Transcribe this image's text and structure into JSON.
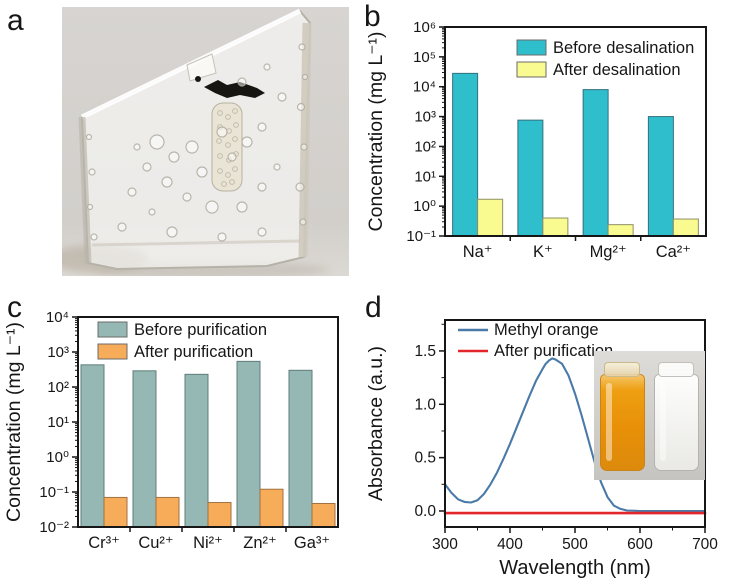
{
  "panels": {
    "a": {
      "letter": "a",
      "content": "photograph of a transparent purified ice crystal block on a gray background"
    },
    "b": {
      "letter": "b"
    },
    "c": {
      "letter": "c"
    },
    "d": {
      "letter": "d",
      "inset": "vials before (methyl orange, orange liquid) and after purification (clear liquid)"
    }
  },
  "chart_data": [
    {
      "id": "b",
      "type": "bar",
      "yscale": "log",
      "ylabel": "Concentration (mg L⁻¹)",
      "ylim": [
        0.1,
        1000000
      ],
      "ytick_values": [
        0.1,
        1,
        10,
        100,
        1000,
        10000,
        100000,
        1000000
      ],
      "ytick_labels": [
        "10⁻¹",
        "10⁰",
        "10¹",
        "10²",
        "10³",
        "10⁴",
        "10⁵",
        "10⁶"
      ],
      "categories": [
        "Na⁺",
        "K⁺",
        "Mg²⁺",
        "Ca²⁺"
      ],
      "series": [
        {
          "name": "Before desalination",
          "color": "#2fbecb",
          "edge": "#35707e",
          "values": [
            28000,
            760,
            8000,
            1000
          ]
        },
        {
          "name": "After desalination",
          "color": "#f9fa90",
          "edge": "#8f9165",
          "values": [
            1.7,
            0.4,
            0.24,
            0.37
          ]
        }
      ],
      "legend_position": "top-right",
      "grid": false
    },
    {
      "id": "c",
      "type": "bar",
      "yscale": "log",
      "ylabel": "Concentration (mg L⁻¹)",
      "ylim": [
        0.01,
        10000
      ],
      "ytick_values": [
        0.01,
        0.1,
        1,
        10,
        100,
        1000,
        10000
      ],
      "ytick_labels": [
        "10⁻²",
        "10⁻¹",
        "10⁰",
        "10¹",
        "10²",
        "10³",
        "10⁴"
      ],
      "categories": [
        "Cr³⁺",
        "Cu²⁺",
        "Ni²⁺",
        "Zn²⁺",
        "Ga³⁺"
      ],
      "series": [
        {
          "name": "Before purification",
          "color": "#95b8b4",
          "edge": "#5f7d79",
          "values": [
            430,
            290,
            230,
            540,
            300
          ]
        },
        {
          "name": "After purification",
          "color": "#f7ac5a",
          "edge": "#a07140",
          "values": [
            0.07,
            0.07,
            0.05,
            0.12,
            0.047
          ]
        }
      ],
      "legend_position": "top-left",
      "grid": false
    },
    {
      "id": "d",
      "type": "line",
      "xlabel": "Wavelength (nm)",
      "ylabel": "Absorbance (a.u.)",
      "xlim": [
        300,
        700
      ],
      "ylim": [
        -0.15,
        1.79
      ],
      "xticks": [
        300,
        400,
        500,
        600,
        700
      ],
      "yticks": [
        0.0,
        0.5,
        1.0,
        1.5
      ],
      "series": [
        {
          "name": "Methyl orange",
          "color": "#4a7aa8",
          "points": [
            [
              300,
              0.25
            ],
            [
              310,
              0.17
            ],
            [
              320,
              0.11
            ],
            [
              330,
              0.085
            ],
            [
              340,
              0.08
            ],
            [
              350,
              0.1
            ],
            [
              360,
              0.16
            ],
            [
              370,
              0.25
            ],
            [
              380,
              0.36
            ],
            [
              390,
              0.49
            ],
            [
              400,
              0.63
            ],
            [
              410,
              0.78
            ],
            [
              420,
              0.93
            ],
            [
              430,
              1.08
            ],
            [
              440,
              1.22
            ],
            [
              450,
              1.33
            ],
            [
              455,
              1.38
            ],
            [
              460,
              1.41
            ],
            [
              465,
              1.43
            ],
            [
              470,
              1.42
            ],
            [
              480,
              1.38
            ],
            [
              490,
              1.27
            ],
            [
              500,
              1.1
            ],
            [
              510,
              0.9
            ],
            [
              520,
              0.68
            ],
            [
              530,
              0.46
            ],
            [
              540,
              0.27
            ],
            [
              550,
              0.13
            ],
            [
              560,
              0.05
            ],
            [
              570,
              0.02
            ],
            [
              580,
              0.005
            ],
            [
              600,
              0.0
            ],
            [
              650,
              0.0
            ],
            [
              700,
              0.0
            ]
          ]
        },
        {
          "name": "After purification",
          "color": "#e2262b",
          "points": [
            [
              300,
              -0.02
            ],
            [
              700,
              -0.02
            ]
          ]
        }
      ],
      "legend_position": "top-left",
      "grid": false
    }
  ]
}
